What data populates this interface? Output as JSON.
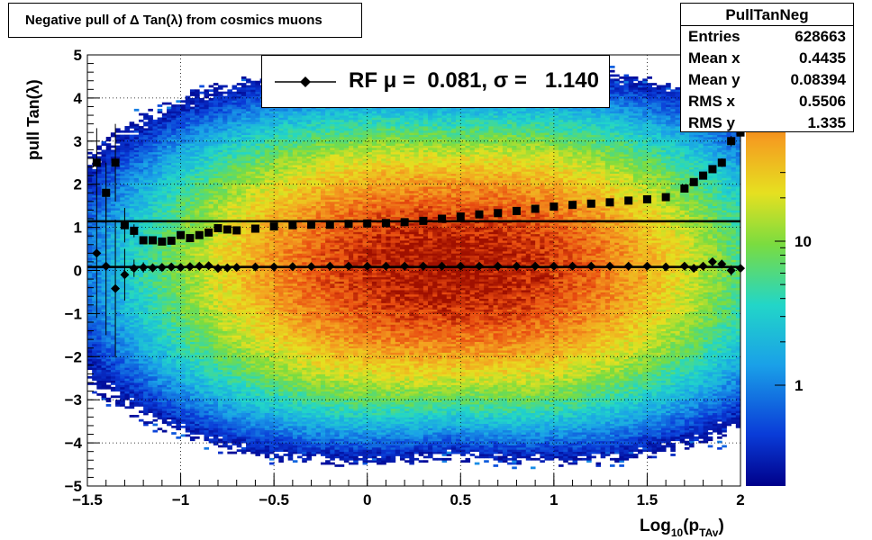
{
  "title": "Negative pull of Δ Tan(λ) from cosmics muons",
  "stats": {
    "name": "PullTanNeg",
    "rows": [
      {
        "label": "Entries",
        "value": "628663"
      },
      {
        "label": "Mean x",
        "value": "0.4435"
      },
      {
        "label": "Mean y",
        "value": "0.08394"
      },
      {
        "label": "RMS x",
        "value": "0.5506"
      },
      {
        "label": "RMS y",
        "value": "1.335"
      }
    ]
  },
  "legend": {
    "text": "RF μ =  0.081, σ =   1.140"
  },
  "colors": {
    "background": "#ffffff",
    "markers": "#000000"
  },
  "chart_data": {
    "type": "heatmap",
    "title": "Negative pull of Δ Tan(λ) from cosmics muons",
    "xlabel": "Log10(pTAv)",
    "ylabel": "pull Tan(λ)",
    "xlim": [
      -1.5,
      2
    ],
    "ylim": [
      -5,
      5
    ],
    "x_ticks": [
      "−1.5",
      "−1",
      "−0.5",
      "0",
      "0.5",
      "1",
      "1.5",
      "2"
    ],
    "y_ticks": [
      "−5",
      "−4",
      "−3",
      "−2",
      "−1",
      "0",
      "1",
      "2",
      "3",
      "4",
      "5"
    ],
    "colorbar": {
      "scale": "log",
      "ticks": [
        "1",
        "10"
      ]
    },
    "grid": true,
    "heatmap_center": {
      "x": 0.44,
      "y": 0.08
    },
    "heatmap_spread": {
      "x": 0.55,
      "y": 1.34
    },
    "series": [
      {
        "name": "mean",
        "x": [
          -1.45,
          -1.4,
          -1.35,
          -1.3,
          -1.25,
          -1.2,
          -1.15,
          -1.1,
          -1.05,
          -1.0,
          -0.95,
          -0.9,
          -0.85,
          -0.8,
          -0.75,
          -0.7,
          -0.6,
          -0.5,
          -0.4,
          -0.3,
          -0.2,
          -0.1,
          0.0,
          0.1,
          0.2,
          0.3,
          0.4,
          0.5,
          0.6,
          0.7,
          0.8,
          0.9,
          1.0,
          1.1,
          1.2,
          1.3,
          1.4,
          1.5,
          1.6,
          1.7,
          1.75,
          1.8,
          1.85,
          1.9,
          1.95,
          2.0
        ],
        "y": [
          0.4,
          0.1,
          -0.42,
          -0.1,
          0.05,
          0.07,
          0.06,
          0.07,
          0.08,
          0.07,
          0.09,
          0.1,
          0.11,
          0.05,
          0.06,
          0.07,
          0.08,
          0.08,
          0.09,
          0.09,
          0.1,
          0.1,
          0.1,
          0.1,
          0.1,
          0.1,
          0.1,
          0.1,
          0.1,
          0.1,
          0.1,
          0.1,
          0.1,
          0.1,
          0.1,
          0.1,
          0.1,
          0.1,
          0.08,
          0.1,
          0.05,
          0.1,
          0.2,
          0.15,
          0.0,
          0.05
        ],
        "yerr": [
          1.5,
          1.6,
          1.6,
          0.6,
          0.2,
          0.12,
          0.1,
          0.08,
          0.06,
          0.05,
          0.04,
          0.04,
          0.03,
          0.03,
          0.03,
          0.03,
          0.02,
          0.02,
          0.02,
          0.02,
          0.02,
          0.02,
          0.02,
          0.02,
          0.02,
          0.02,
          0.02,
          0.02,
          0.02,
          0.02,
          0.02,
          0.02,
          0.02,
          0.02,
          0.02,
          0.02,
          0.03,
          0.03,
          0.04,
          0.05,
          0.06,
          0.07,
          0.08,
          0.1,
          0.12,
          0.15
        ]
      },
      {
        "name": "sigma",
        "x": [
          -1.45,
          -1.4,
          -1.35,
          -1.3,
          -1.25,
          -1.2,
          -1.15,
          -1.1,
          -1.05,
          -1.0,
          -0.95,
          -0.9,
          -0.85,
          -0.8,
          -0.75,
          -0.7,
          -0.6,
          -0.5,
          -0.4,
          -0.3,
          -0.2,
          -0.1,
          0.0,
          0.1,
          0.2,
          0.3,
          0.4,
          0.5,
          0.6,
          0.7,
          0.8,
          0.9,
          1.0,
          1.1,
          1.2,
          1.3,
          1.4,
          1.5,
          1.6,
          1.7,
          1.75,
          1.8,
          1.85,
          1.9,
          1.95,
          2.0
        ],
        "y": [
          2.5,
          1.8,
          2.5,
          1.05,
          0.92,
          0.7,
          0.7,
          0.67,
          0.69,
          0.82,
          0.75,
          0.82,
          0.88,
          0.98,
          0.95,
          0.93,
          0.97,
          1.02,
          1.05,
          1.06,
          1.06,
          1.08,
          1.09,
          1.1,
          1.12,
          1.15,
          1.2,
          1.25,
          1.3,
          1.33,
          1.38,
          1.43,
          1.48,
          1.52,
          1.55,
          1.58,
          1.62,
          1.65,
          1.7,
          1.9,
          2.05,
          2.2,
          2.35,
          2.5,
          3.0,
          3.2
        ],
        "yerr": [
          0.8,
          0.7,
          0.9,
          0.4,
          0.15,
          0.08,
          0.07,
          0.06,
          0.05,
          0.04,
          0.04,
          0.03,
          0.03,
          0.02,
          0.02,
          0.02,
          0.02,
          0.02,
          0.02,
          0.02,
          0.02,
          0.02,
          0.02,
          0.02,
          0.02,
          0.02,
          0.02,
          0.02,
          0.02,
          0.02,
          0.02,
          0.02,
          0.02,
          0.02,
          0.02,
          0.02,
          0.03,
          0.03,
          0.04,
          0.05,
          0.06,
          0.07,
          0.08,
          0.1,
          0.12,
          0.15
        ]
      }
    ],
    "fit_lines": [
      {
        "name": "mu",
        "y": 0.081
      },
      {
        "name": "sigma",
        "y": 1.14
      }
    ]
  }
}
